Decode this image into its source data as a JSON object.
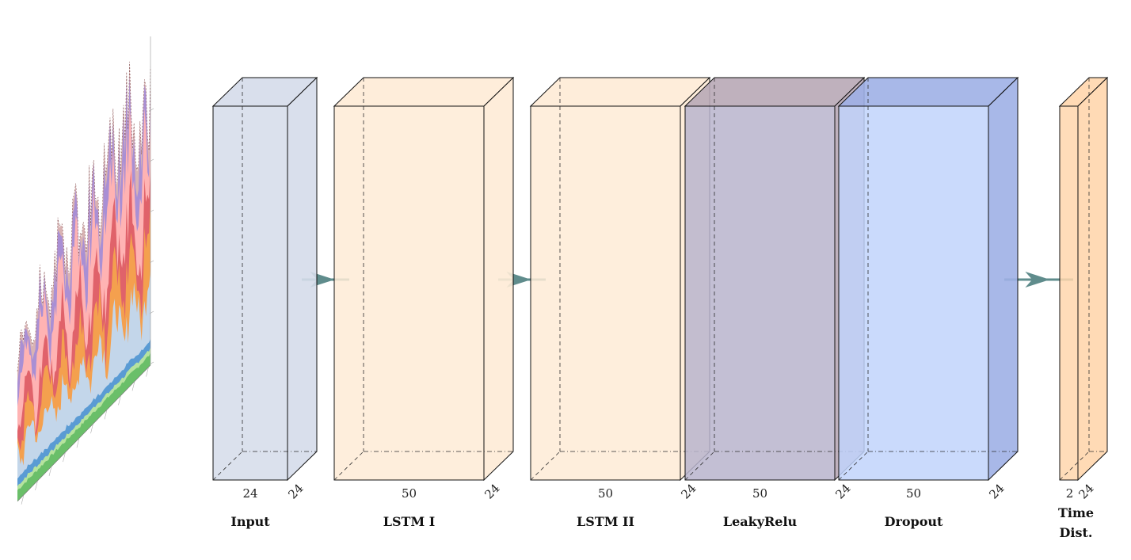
{
  "diagram": {
    "layers": [
      {
        "id": "input",
        "caption": [
          "Input"
        ],
        "width_label": "24",
        "depth_label": "24",
        "fill": "#d5dcea",
        "edge_fill": "#d5dcea"
      },
      {
        "id": "lstm1",
        "caption": [
          "LSTM I"
        ],
        "width_label": "50",
        "depth_label": "24",
        "fill": "#feebd6",
        "edge_fill": "#feebd6"
      },
      {
        "id": "lstm2",
        "caption": [
          "LSTM II"
        ],
        "width_label": "50",
        "depth_label": "24",
        "fill": "#feebd6",
        "edge_fill": "#feebd6"
      },
      {
        "id": "leakyrelu",
        "caption": [
          "LeakyRelu"
        ],
        "width_label": "50",
        "depth_label": "24",
        "fill": "#b9b4cc",
        "edge_fill": "#b8a8b6"
      },
      {
        "id": "dropout",
        "caption": [
          "Dropout"
        ],
        "width_label": "50",
        "depth_label": "24",
        "fill": "#c1d3fb",
        "edge_fill": "#9eb0e6"
      },
      {
        "id": "timedist",
        "caption": [
          "Time",
          "Dist."
        ],
        "width_label": "2",
        "depth_label": "24",
        "fill": "#ffd6ad",
        "edge_fill": "#ffd6ad"
      }
    ],
    "arrow_color": "#5f8c8c",
    "input_chart": {
      "series_colors": [
        "#6abf69",
        "#b6e39e",
        "#5a9bd4",
        "#c3d6ea",
        "#f4a04e",
        "#e0626a",
        "#ffb3b3",
        "#a98fd4",
        "#d9b3b3"
      ]
    }
  }
}
